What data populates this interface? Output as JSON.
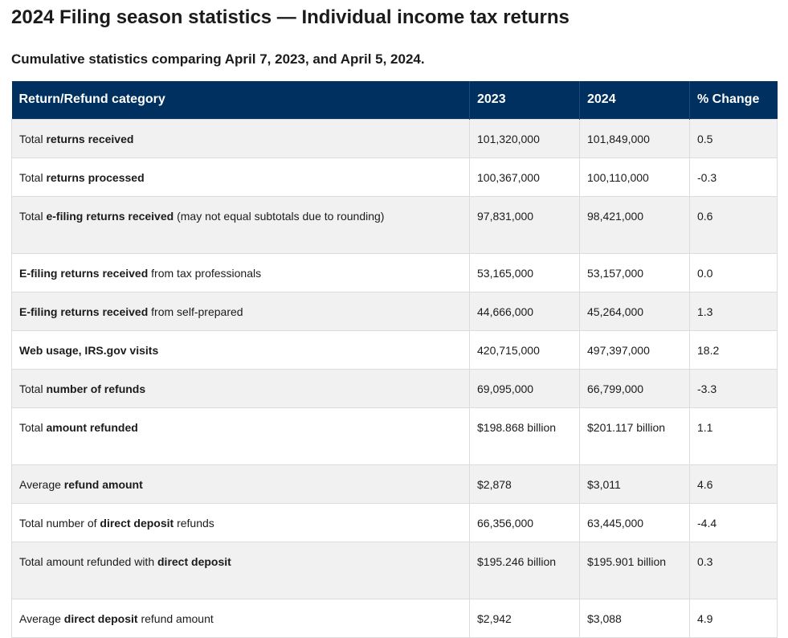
{
  "page": {
    "title": "2024 Filing season statistics — Individual income tax returns",
    "subtitle": "Cumulative statistics comparing April 7, 2023, and April 5, 2024."
  },
  "table": {
    "headers": [
      "Return/Refund category",
      "2023",
      "2024",
      "% Change"
    ],
    "rows": [
      {
        "label": [
          {
            "t": "Total ",
            "b": false
          },
          {
            "t": "returns received",
            "b": true
          }
        ],
        "y2023": "101,320,000",
        "y2024": "101,849,000",
        "change": "0.5"
      },
      {
        "label": [
          {
            "t": "Total ",
            "b": false
          },
          {
            "t": "returns processed",
            "b": true
          }
        ],
        "y2023": "100,367,000",
        "y2024": "100,110,000",
        "change": "-0.3"
      },
      {
        "label": [
          {
            "t": "Total ",
            "b": false
          },
          {
            "t": "e-filing returns received",
            "b": true
          },
          {
            "t": " (may not equal subtotals due to rounding)",
            "b": false
          }
        ],
        "y2023": "97,831,000",
        "y2024": "98,421,000",
        "change": "0.6"
      },
      {
        "label": [
          {
            "t": "E-filing returns received",
            "b": true
          },
          {
            "t": " from tax professionals",
            "b": false
          }
        ],
        "y2023": "53,165,000",
        "y2024": "53,157,000",
        "change": "0.0"
      },
      {
        "label": [
          {
            "t": "E-filing returns received",
            "b": true
          },
          {
            "t": " from self-prepared",
            "b": false
          }
        ],
        "y2023": "44,666,000",
        "y2024": "45,264,000",
        "change": "1.3"
      },
      {
        "label": [
          {
            "t": "Web usage, IRS.gov visits",
            "b": true
          }
        ],
        "y2023": "420,715,000",
        "y2024": "497,397,000",
        "change": "18.2"
      },
      {
        "label": [
          {
            "t": "Total ",
            "b": false
          },
          {
            "t": "number of refunds",
            "b": true
          }
        ],
        "y2023": "69,095,000",
        "y2024": "66,799,000",
        "change": "-3.3"
      },
      {
        "label": [
          {
            "t": "Total ",
            "b": false
          },
          {
            "t": "amount refunded",
            "b": true
          }
        ],
        "y2023": "$198.868 billion",
        "y2024": "$201.117 billion",
        "change": "1.1"
      },
      {
        "label": [
          {
            "t": "Average ",
            "b": false
          },
          {
            "t": "refund amount",
            "b": true
          }
        ],
        "y2023": "$2,878",
        "y2024": "$3,011",
        "change": "4.6"
      },
      {
        "label": [
          {
            "t": "Total number of ",
            "b": false
          },
          {
            "t": "direct deposit",
            "b": true
          },
          {
            "t": " refunds",
            "b": false
          }
        ],
        "y2023": "66,356,000",
        "y2024": "63,445,000",
        "change": "-4.4"
      },
      {
        "label": [
          {
            "t": "Total amount refunded with ",
            "b": false
          },
          {
            "t": "direct deposit",
            "b": true
          }
        ],
        "y2023": "$195.246 billion",
        "y2024": "$195.901 billion",
        "change": "0.3"
      },
      {
        "label": [
          {
            "t": "Average ",
            "b": false
          },
          {
            "t": "direct deposit",
            "b": true
          },
          {
            "t": " refund amount",
            "b": false
          }
        ],
        "y2023": "$2,942",
        "y2024": "$3,088",
        "change": "4.9"
      }
    ]
  }
}
